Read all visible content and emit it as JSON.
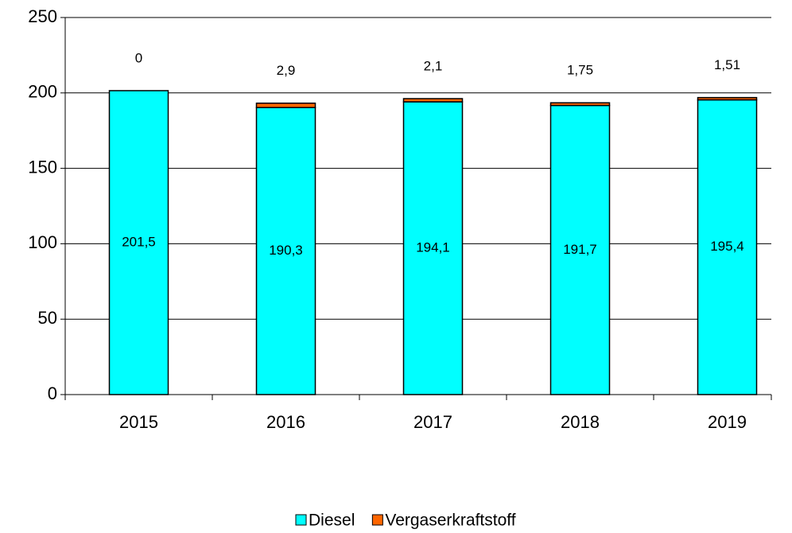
{
  "chart_data": {
    "type": "stacked_bar",
    "categories": [
      "2015",
      "2016",
      "2017",
      "2018",
      "2019"
    ],
    "series": [
      {
        "name": "Diesel",
        "color": "#00ffff",
        "values": [
          201.5,
          190.3,
          194.1,
          191.7,
          195.4
        ],
        "value_labels": [
          "201,5",
          "190,3",
          "194,1",
          "191,7",
          "195,4"
        ]
      },
      {
        "name": "Vergaserkraftstoff",
        "color": "#ff6600",
        "values": [
          0,
          2.9,
          2.1,
          1.75,
          1.51
        ],
        "value_labels": [
          "0",
          "2,9",
          "2,1",
          "1,75",
          "1,51"
        ]
      }
    ],
    "ylim": [
      0,
      250
    ],
    "yticks": [
      0,
      50,
      100,
      150,
      200,
      250
    ],
    "grid": true
  }
}
